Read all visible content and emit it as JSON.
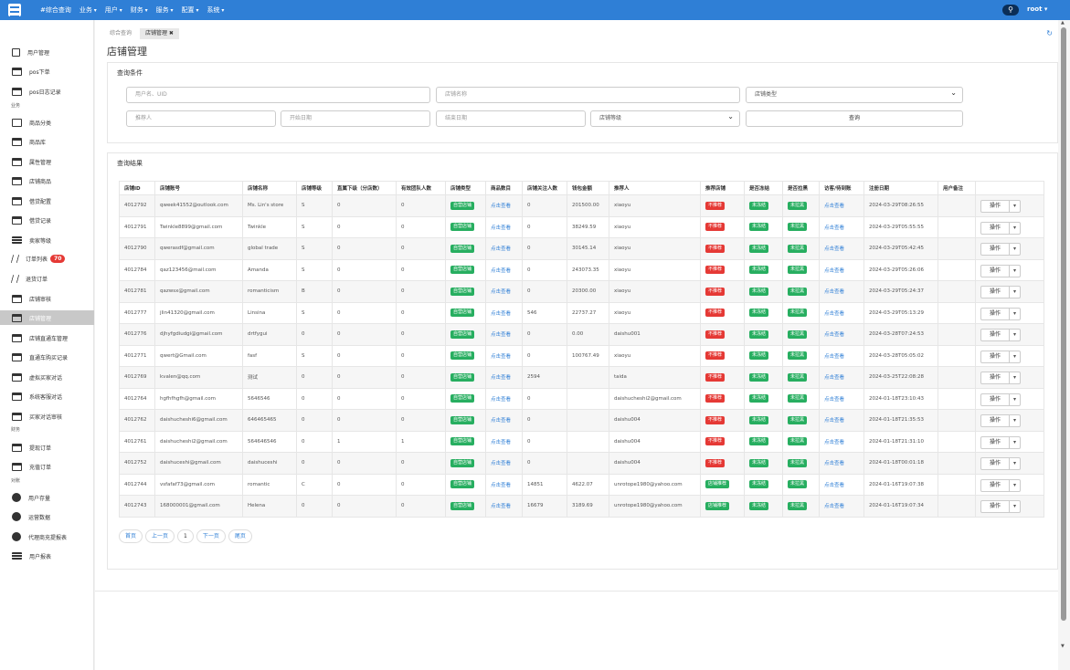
{
  "topbar": {
    "nav": [
      "#综合查询",
      "业务",
      "用户",
      "财务",
      "服务",
      "配置",
      "系统"
    ],
    "user": "root"
  },
  "sidebar": {
    "items": [
      {
        "label": "用户管理",
        "icon": "document-icon"
      },
      {
        "label": "pos下单",
        "icon": "window-icon"
      },
      {
        "label": "pos日志记录",
        "icon": "window-icon"
      },
      {
        "label": "商品分类",
        "icon": "monitor-icon"
      },
      {
        "label": "商品库",
        "icon": "window-icon"
      },
      {
        "label": "属性管理",
        "icon": "window-icon"
      },
      {
        "label": "店铺商品",
        "icon": "window-icon"
      },
      {
        "label": "借贷配置",
        "icon": "window-icon"
      },
      {
        "label": "借贷记录",
        "icon": "window-icon"
      },
      {
        "label": "卖家等级",
        "icon": "list-icon"
      },
      {
        "label": "订单列表",
        "icon": "slash-icon",
        "badge": "70"
      },
      {
        "label": "退货订单",
        "icon": "slash-icon"
      },
      {
        "label": "店铺审核",
        "icon": "panel-icon"
      },
      {
        "label": "店铺管理",
        "icon": "panel-icon"
      },
      {
        "label": "店铺直通车管理",
        "icon": "panel-icon"
      },
      {
        "label": "直通车购买记录",
        "icon": "panel-icon"
      },
      {
        "label": "虚拟买家对话",
        "icon": "panel-icon"
      },
      {
        "label": "系统客服对话",
        "icon": "panel-icon"
      },
      {
        "label": "买家对话审核",
        "icon": "panel-icon"
      },
      {
        "label": "提现订单",
        "icon": "panel-icon"
      },
      {
        "label": "充值订单",
        "icon": "panel-icon"
      },
      {
        "label": "用户存量",
        "icon": "pie-icon"
      },
      {
        "label": "运营数据",
        "icon": "pie-icon"
      },
      {
        "label": "代理商充提报表",
        "icon": "hierarchy-icon"
      },
      {
        "label": "用户报表",
        "icon": "list-icon"
      }
    ],
    "groups": [
      "业务",
      "财务",
      "对账"
    ]
  },
  "tabs": [
    "综合查询",
    "店铺管理 ✖"
  ],
  "page_title": "店铺管理",
  "query": {
    "title": "查询条件",
    "user_placeholder": "用户名、UID",
    "shop_name_placeholder": "店铺名称",
    "shop_type": "店铺类型",
    "referrer_placeholder": "推荐人",
    "start_date_placeholder": "开始日期",
    "end_date_placeholder": "结束日期",
    "shop_level": "店铺等级",
    "search_label": "查询"
  },
  "results": {
    "title": "查询结果",
    "columns": [
      "店铺ID",
      "店铺账号",
      "店铺名称",
      "店铺等级",
      "直属下级（分店数）",
      "有效团队人数",
      "店铺类型",
      "商品数目",
      "店铺关注人数",
      "钱包金额",
      "推荐人",
      "推荐店铺",
      "是否冻结",
      "是否拉黑",
      "访客/待到账",
      "注册日期",
      "用户备注",
      ""
    ],
    "rows": [
      {
        "id": "4012792",
        "account": "qweek41552@outlook.com",
        "name": "Ms. Lin's store",
        "level": "S",
        "sub": "0",
        "team": "0",
        "type": "自营店铺",
        "goods": "点击查看",
        "follow": "0",
        "wallet": "201500.00",
        "referrer": "xiaoyu",
        "recommend": "不推荐",
        "recommend_color": "red",
        "frozen": "未冻结",
        "blocked": "未拉黑",
        "visitor": "点击查看",
        "date": "2024-03-29T08:26:55",
        "remark": "",
        "op": "操作"
      },
      {
        "id": "4012791",
        "account": "Twinkle8899@gmail.com",
        "name": "Twinkle",
        "level": "S",
        "sub": "0",
        "team": "0",
        "type": "自营店铺",
        "goods": "点击查看",
        "follow": "0",
        "wallet": "38249.59",
        "referrer": "xiaoyu",
        "recommend": "不推荐",
        "recommend_color": "red",
        "frozen": "未冻结",
        "blocked": "未拉黑",
        "visitor": "点击查看",
        "date": "2024-03-29T05:55:55",
        "remark": "",
        "op": "操作"
      },
      {
        "id": "4012790",
        "account": "qwerasdf@gmail.com",
        "name": "global trade",
        "level": "S",
        "sub": "0",
        "team": "0",
        "type": "自营店铺",
        "goods": "点击查看",
        "follow": "0",
        "wallet": "30145.14",
        "referrer": "xiaoyu",
        "recommend": "不推荐",
        "recommend_color": "red",
        "frozen": "未冻结",
        "blocked": "未拉黑",
        "visitor": "点击查看",
        "date": "2024-03-29T05:42:45",
        "remark": "",
        "op": "操作"
      },
      {
        "id": "4012784",
        "account": "qaz123456@mail.com",
        "name": "Amanda",
        "level": "S",
        "sub": "0",
        "team": "0",
        "type": "自营店铺",
        "goods": "点击查看",
        "follow": "0",
        "wallet": "243073.35",
        "referrer": "xiaoyu",
        "recommend": "不推荐",
        "recommend_color": "red",
        "frozen": "未冻结",
        "blocked": "未拉黑",
        "visitor": "点击查看",
        "date": "2024-03-29T05:26:06",
        "remark": "",
        "op": "操作"
      },
      {
        "id": "4012781",
        "account": "qazwsx@gmail.com",
        "name": "romanticism",
        "level": "B",
        "sub": "0",
        "team": "0",
        "type": "自营店铺",
        "goods": "点击查看",
        "follow": "0",
        "wallet": "20300.00",
        "referrer": "xiaoyu",
        "recommend": "不推荐",
        "recommend_color": "red",
        "frozen": "未冻结",
        "blocked": "未拉黑",
        "visitor": "点击查看",
        "date": "2024-03-29T05:24:37",
        "remark": "",
        "op": "操作"
      },
      {
        "id": "4012777",
        "account": "jlin41320@gmail.com",
        "name": "Linsina",
        "level": "S",
        "sub": "0",
        "team": "0",
        "type": "自营店铺",
        "goods": "点击查看",
        "follow": "546",
        "wallet": "22737.27",
        "referrer": "xiaoyu",
        "recommend": "不推荐",
        "recommend_color": "red",
        "frozen": "未冻结",
        "blocked": "未拉黑",
        "visitor": "点击查看",
        "date": "2024-03-29T05:13:29",
        "remark": "",
        "op": "操作"
      },
      {
        "id": "4012776",
        "account": "djhyfgdiudgi@gmail.com",
        "name": "drtfygui",
        "level": "0",
        "sub": "0",
        "team": "0",
        "type": "自营店铺",
        "goods": "点击查看",
        "follow": "0",
        "wallet": "0.00",
        "referrer": "daishu001",
        "recommend": "不推荐",
        "recommend_color": "red",
        "frozen": "未冻结",
        "blocked": "未拉黑",
        "visitor": "点击查看",
        "date": "2024-03-28T07:24:53",
        "remark": "",
        "op": "操作"
      },
      {
        "id": "4012771",
        "account": "qwert@Gmail.com",
        "name": "fasf",
        "level": "S",
        "sub": "0",
        "team": "0",
        "type": "自营店铺",
        "goods": "点击查看",
        "follow": "0",
        "wallet": "100767.49",
        "referrer": "xiaoyu",
        "recommend": "不推荐",
        "recommend_color": "red",
        "frozen": "未冻结",
        "blocked": "未拉黑",
        "visitor": "点击查看",
        "date": "2024-03-28T05:05:02",
        "remark": "",
        "op": "操作"
      },
      {
        "id": "4012769",
        "account": "kvalen@qq.com",
        "name": "测试",
        "level": "0",
        "sub": "0",
        "team": "0",
        "type": "自营店铺",
        "goods": "点击查看",
        "follow": "2594",
        "wallet": "",
        "referrer": "taida",
        "recommend": "不推荐",
        "recommend_color": "red",
        "frozen": "未冻结",
        "blocked": "未拉黑",
        "visitor": "点击查看",
        "date": "2024-03-25T22:08:28",
        "remark": "",
        "op": "操作"
      },
      {
        "id": "4012764",
        "account": "hgfhfhgfh@gmail.com",
        "name": "5646546",
        "level": "0",
        "sub": "0",
        "team": "0",
        "type": "自营店铺",
        "goods": "点击查看",
        "follow": "0",
        "wallet": "",
        "referrer": "daishucheshi2@gmail.com",
        "recommend": "不推荐",
        "recommend_color": "red",
        "frozen": "未冻结",
        "blocked": "未拉黑",
        "visitor": "点击查看",
        "date": "2024-01-18T23:10:43",
        "remark": "",
        "op": "操作"
      },
      {
        "id": "4012762",
        "account": "daishucheshi6@gmail.com",
        "name": "646465465",
        "level": "0",
        "sub": "0",
        "team": "0",
        "type": "自营店铺",
        "goods": "点击查看",
        "follow": "0",
        "wallet": "",
        "referrer": "daishu004",
        "recommend": "不推荐",
        "recommend_color": "red",
        "frozen": "未冻结",
        "blocked": "未拉黑",
        "visitor": "点击查看",
        "date": "2024-01-18T21:35:53",
        "remark": "",
        "op": "操作"
      },
      {
        "id": "4012761",
        "account": "daishucheshi2@gmail.com",
        "name": "564646546",
        "level": "0",
        "sub": "1",
        "team": "1",
        "type": "自营店铺",
        "goods": "点击查看",
        "follow": "0",
        "wallet": "",
        "referrer": "daishu004",
        "recommend": "不推荐",
        "recommend_color": "red",
        "frozen": "未冻结",
        "blocked": "未拉黑",
        "visitor": "点击查看",
        "date": "2024-01-18T21:31:10",
        "remark": "",
        "op": "操作"
      },
      {
        "id": "4012752",
        "account": "daishuceshi@gmail.com",
        "name": "daishuceshi",
        "level": "0",
        "sub": "0",
        "team": "0",
        "type": "自营店铺",
        "goods": "点击查看",
        "follow": "0",
        "wallet": "",
        "referrer": "daishu004",
        "recommend": "不推荐",
        "recommend_color": "red",
        "frozen": "未冻结",
        "blocked": "未拉黑",
        "visitor": "点击查看",
        "date": "2024-01-18T00:01:18",
        "remark": "",
        "op": "操作"
      },
      {
        "id": "4012744",
        "account": "vsfafaf73@gmail.com",
        "name": "romantic",
        "level": "C",
        "sub": "0",
        "team": "0",
        "type": "自营店铺",
        "goods": "点击查看",
        "follow": "14851",
        "wallet": "4622.07",
        "referrer": "unrotope1980@yahoo.com",
        "recommend": "店铺推荐",
        "recommend_color": "green",
        "frozen": "未冻结",
        "blocked": "未拉黑",
        "visitor": "点击查看",
        "date": "2024-01-16T19:07:38",
        "remark": "",
        "op": "操作"
      },
      {
        "id": "4012743",
        "account": "168000001@gmail.com",
        "name": "Helena",
        "level": "0",
        "sub": "0",
        "team": "0",
        "type": "自营店铺",
        "goods": "点击查看",
        "follow": "16679",
        "wallet": "3189.69",
        "referrer": "unrotope1980@yahoo.com",
        "recommend": "店铺推荐",
        "recommend_color": "green",
        "frozen": "未冻结",
        "blocked": "未拉黑",
        "visitor": "点击查看",
        "date": "2024-01-16T19:07:34",
        "remark": "",
        "op": "操作"
      }
    ]
  },
  "pager": {
    "first": "首页",
    "prev": "上一页",
    "page": "1",
    "next": "下一页",
    "last": "尾页"
  },
  "colors": {
    "primary": "#2f7fd6",
    "tag_green": "#27ae60",
    "tag_red": "#e53935"
  }
}
